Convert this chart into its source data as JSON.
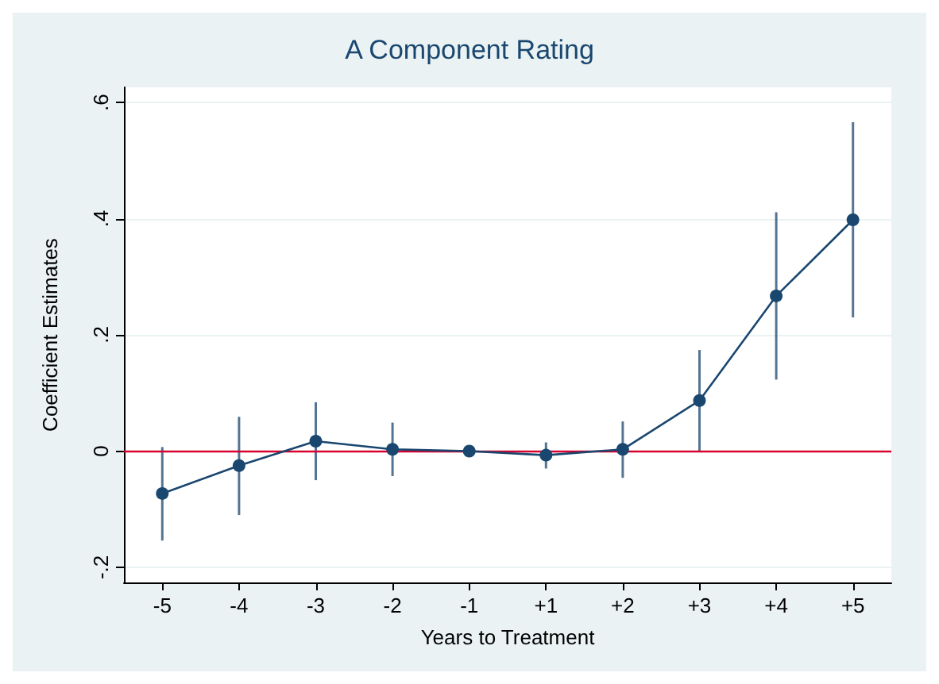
{
  "chart_data": {
    "type": "line",
    "title": "A Component Rating",
    "xlabel": "Years to Treatment",
    "ylabel": "Coefficient Estimates",
    "categories": [
      "-5",
      "-4",
      "-3",
      "-2",
      "-1",
      "+1",
      "+2",
      "+3",
      "+4",
      "+5"
    ],
    "series": [
      {
        "color": "#1a476f",
        "values": [
          -0.073,
          -0.025,
          0.017,
          0.003,
          0,
          -0.007,
          0.003,
          0.087,
          0.267,
          0.398
        ],
        "errors": [
          [
            -0.154,
            0.007
          ],
          [
            -0.11,
            0.059
          ],
          [
            -0.05,
            0.084
          ],
          [
            -0.043,
            0.049
          ],
          null,
          [
            -0.03,
            0.015
          ],
          [
            -0.046,
            0.051
          ],
          [
            0,
            0.174
          ],
          [
            0.123,
            0.411
          ],
          [
            0.23,
            0.566
          ]
        ]
      }
    ],
    "ylim": [
      -0.226,
      0.626
    ],
    "yticks": [
      {
        "value": -0.2,
        "label": "-.2"
      },
      {
        "value": 0,
        "label": "0"
      },
      {
        "value": 0.2,
        "label": ".2"
      },
      {
        "value": 0.4,
        "label": ".4"
      },
      {
        "value": 0.6,
        "label": ".6"
      }
    ],
    "ref_lines": [
      {
        "axis": "y",
        "value": 0,
        "color": "#d7002f"
      }
    ],
    "grid": "y",
    "marker": "circle",
    "line_style": "solid"
  }
}
